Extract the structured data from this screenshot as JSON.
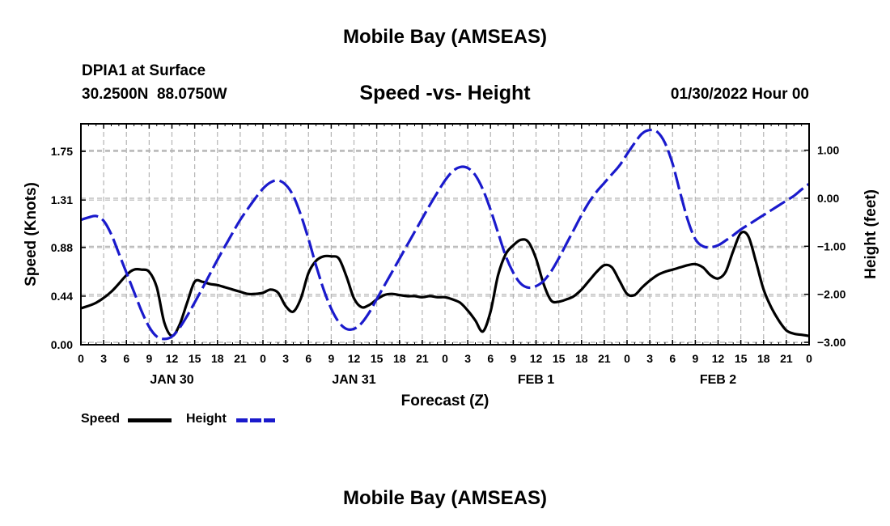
{
  "header": {
    "top_title": "Mobile Bay (AMSEAS)",
    "station": "DPIA1 at Surface",
    "coords": "30.2500N  88.0750W",
    "subtitle": "Speed -vs- Height",
    "datetime": "01/30/2022 Hour 00",
    "bottom_title": "Mobile Bay (AMSEAS)"
  },
  "legend": {
    "speed_label": "Speed",
    "height_label": "Height",
    "speed_color": "#000000",
    "height_color": "#1a1acc"
  },
  "chart_data": {
    "type": "line",
    "title": "Speed -vs- Height",
    "xlabel": "Forecast (Z)",
    "ylabel_left": "Speed (Knots)",
    "ylabel_right": "Height (feet)",
    "x_range_hours": [
      0,
      96
    ],
    "ylim_left": [
      0,
      2.0
    ],
    "ylim_right": [
      -3.05,
      1.55
    ],
    "x_tick_hours": [
      0,
      3,
      6,
      9,
      12,
      15,
      18,
      21,
      24,
      27,
      30,
      33,
      36,
      39,
      42,
      45,
      48,
      51,
      54,
      57,
      60,
      63,
      66,
      69,
      72,
      75,
      78,
      81,
      84,
      87,
      90,
      93,
      96
    ],
    "x_tick_labels": [
      "0",
      "3",
      "6",
      "9",
      "12",
      "15",
      "18",
      "21",
      "0",
      "3",
      "6",
      "9",
      "12",
      "15",
      "18",
      "21",
      "0",
      "3",
      "6",
      "9",
      "12",
      "15",
      "18",
      "21",
      "0",
      "3",
      "6",
      "9",
      "12",
      "15",
      "18",
      "21",
      "0"
    ],
    "date_labels": [
      {
        "label": "JAN 30",
        "hour": 12
      },
      {
        "label": "JAN 31",
        "hour": 36
      },
      {
        "label": "FEB 1",
        "hour": 60
      },
      {
        "label": "FEB 2",
        "hour": 84
      }
    ],
    "y_ticks_left": [
      0.0,
      0.44,
      0.88,
      1.31,
      1.75
    ],
    "y_tick_labels_left": [
      "0.00",
      "0.44",
      "0.88",
      "1.31",
      "1.75"
    ],
    "y_ticks_right": [
      -3.0,
      -2.0,
      -1.0,
      0.0,
      1.0
    ],
    "y_tick_labels_right": [
      "−3.00",
      "−2.00",
      "−1.00",
      "0.00",
      "1.00"
    ],
    "series": [
      {
        "name": "Speed",
        "axis": "left",
        "x": [
          0,
          2,
          4,
          6,
          7,
          8,
          9,
          10,
          11,
          12,
          13,
          14,
          15,
          16,
          17,
          18,
          19,
          20,
          21,
          22,
          23,
          24,
          25,
          26,
          27,
          28,
          29,
          30,
          31,
          32,
          33,
          34,
          35,
          36,
          37,
          38,
          39,
          40,
          41,
          42,
          43,
          44,
          45,
          46,
          47,
          48,
          49,
          50,
          51,
          52,
          53,
          54,
          55,
          56,
          57,
          58,
          59,
          60,
          61,
          62,
          63,
          64,
          65,
          66,
          67,
          68,
          69,
          70,
          71,
          72,
          73,
          74,
          75,
          76,
          77,
          78,
          79,
          80,
          81,
          82,
          83,
          84,
          85,
          86,
          87,
          88,
          89,
          90,
          91,
          92,
          93,
          94,
          95,
          96
        ],
        "values": [
          0.33,
          0.38,
          0.48,
          0.63,
          0.68,
          0.68,
          0.66,
          0.52,
          0.2,
          0.08,
          0.18,
          0.38,
          0.57,
          0.57,
          0.55,
          0.54,
          0.52,
          0.5,
          0.48,
          0.46,
          0.46,
          0.47,
          0.5,
          0.47,
          0.35,
          0.3,
          0.42,
          0.65,
          0.76,
          0.8,
          0.8,
          0.78,
          0.62,
          0.42,
          0.34,
          0.36,
          0.41,
          0.45,
          0.46,
          0.45,
          0.44,
          0.44,
          0.43,
          0.44,
          0.43,
          0.43,
          0.41,
          0.38,
          0.31,
          0.22,
          0.12,
          0.3,
          0.63,
          0.82,
          0.9,
          0.95,
          0.93,
          0.78,
          0.55,
          0.4,
          0.39,
          0.41,
          0.44,
          0.5,
          0.58,
          0.66,
          0.72,
          0.7,
          0.58,
          0.46,
          0.45,
          0.52,
          0.58,
          0.63,
          0.66,
          0.68,
          0.7,
          0.72,
          0.73,
          0.7,
          0.63,
          0.6,
          0.66,
          0.85,
          1.01,
          0.98,
          0.75,
          0.5,
          0.34,
          0.22,
          0.13,
          0.1,
          0.09,
          0.08
        ]
      },
      {
        "name": "Height",
        "axis": "right",
        "x": [
          0,
          1,
          2,
          3,
          4,
          5,
          6,
          7,
          8,
          9,
          10,
          11,
          12,
          13,
          14,
          15,
          16,
          17,
          18,
          19,
          20,
          21,
          22,
          23,
          24,
          25,
          26,
          27,
          28,
          29,
          30,
          31,
          32,
          33,
          34,
          35,
          36,
          37,
          38,
          39,
          40,
          41,
          42,
          43,
          44,
          45,
          46,
          47,
          48,
          49,
          50,
          51,
          52,
          53,
          54,
          55,
          56,
          57,
          58,
          59,
          60,
          61,
          62,
          63,
          64,
          65,
          66,
          67,
          68,
          69,
          70,
          71,
          72,
          73,
          74,
          75,
          76,
          77,
          78,
          79,
          80,
          81,
          82,
          83,
          84,
          85,
          86,
          87,
          88,
          89,
          90,
          91,
          92,
          93,
          94,
          95,
          96
        ],
        "values": [
          -0.45,
          -0.4,
          -0.37,
          -0.47,
          -0.75,
          -1.15,
          -1.55,
          -1.95,
          -2.35,
          -2.68,
          -2.88,
          -2.93,
          -2.88,
          -2.7,
          -2.45,
          -2.17,
          -1.88,
          -1.58,
          -1.28,
          -1.0,
          -0.72,
          -0.45,
          -0.22,
          0.0,
          0.2,
          0.33,
          0.37,
          0.28,
          0.05,
          -0.35,
          -0.85,
          -1.4,
          -1.9,
          -2.3,
          -2.58,
          -2.72,
          -2.72,
          -2.6,
          -2.38,
          -2.1,
          -1.82,
          -1.54,
          -1.26,
          -0.98,
          -0.7,
          -0.42,
          -0.14,
          0.12,
          0.37,
          0.56,
          0.65,
          0.63,
          0.48,
          0.18,
          -0.24,
          -0.72,
          -1.2,
          -1.55,
          -1.78,
          -1.86,
          -1.83,
          -1.72,
          -1.52,
          -1.25,
          -0.95,
          -0.65,
          -0.35,
          -0.08,
          0.14,
          0.32,
          0.5,
          0.68,
          0.92,
          1.15,
          1.35,
          1.42,
          1.38,
          1.15,
          0.72,
          0.12,
          -0.45,
          -0.85,
          -1.0,
          -1.02,
          -0.98,
          -0.88,
          -0.77,
          -0.65,
          -0.55,
          -0.45,
          -0.35,
          -0.25,
          -0.15,
          -0.05,
          0.05,
          0.18,
          0.3
        ]
      }
    ]
  }
}
